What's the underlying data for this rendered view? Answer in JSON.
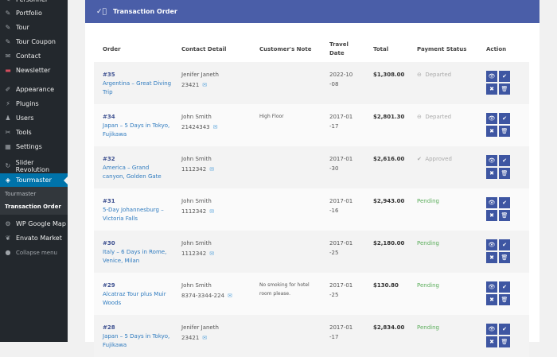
{
  "sidebar": {
    "items": [
      {
        "label": "Personnel",
        "icon": "pin-icon",
        "top": -9
      },
      {
        "label": "Portfolio",
        "icon": "pin-icon",
        "top": 8
      },
      {
        "label": "Tour",
        "icon": "pin-icon",
        "top": 26
      },
      {
        "label": "Tour Coupon",
        "icon": "pin-icon",
        "top": 44
      },
      {
        "label": "Contact",
        "icon": "mail-icon",
        "top": 62
      },
      {
        "label": "Newsletter",
        "icon": "newsletter-icon",
        "top": 80
      },
      {
        "label": "Appearance",
        "icon": "brush-icon",
        "top": 104
      },
      {
        "label": "Plugins",
        "icon": "plugin-icon",
        "top": 122
      },
      {
        "label": "Users",
        "icon": "user-icon",
        "top": 140
      },
      {
        "label": "Tools",
        "icon": "wrench-icon",
        "top": 158
      },
      {
        "label": "Settings",
        "icon": "settings-icon",
        "top": 176
      },
      {
        "label": "Slider Revolution",
        "icon": "refresh-icon",
        "top": 200
      },
      {
        "label": "Tourmaster",
        "icon": "tourmaster-icon",
        "top": 218,
        "active": true
      },
      {
        "label": "WP Google Map",
        "icon": "gear-icon",
        "top": 273
      },
      {
        "label": "Envato Market",
        "icon": "leaf-icon",
        "top": 291
      },
      {
        "label": "Collapse menu",
        "icon": "collapse-icon",
        "top": 309
      }
    ],
    "submenu": [
      "Tourmaster",
      "Transaction Order"
    ]
  },
  "header": {
    "title": "Transaction Order",
    "icon": "check-circle-icon",
    "color": "#4a5ea8"
  },
  "table": {
    "headers": [
      "Order",
      "Contact Detail",
      "Customer's Note",
      "Travel Date",
      "Total",
      "Payment Status",
      "Action"
    ],
    "rows": [
      {
        "id": "#35",
        "tour": "Argentina – Great Diving Trip",
        "name": "Jenifer Janeth",
        "phone": "23421",
        "note": "",
        "date": "2022-10-08",
        "total": "$1,308.00",
        "status": "Departed",
        "status_type": "dep"
      },
      {
        "id": "#34",
        "tour": "Japan – 5 Days in Tokyo, Fujikawa",
        "name": "John Smith",
        "phone": "21424343",
        "note": "High Floor",
        "date": "2017-01-17",
        "total": "$2,801.30",
        "status": "Departed",
        "status_type": "dep"
      },
      {
        "id": "#32",
        "tour": "America – Grand canyon, Golden Gate",
        "name": "John Smith",
        "phone": "1112342",
        "note": "",
        "date": "2017-01-30",
        "total": "$2,616.00",
        "status": "Approved",
        "status_type": "app"
      },
      {
        "id": "#31",
        "tour": "5-Day Johannesburg – Victoria Falls",
        "name": "John Smith",
        "phone": "1112342",
        "note": "",
        "date": "2017-01-16",
        "total": "$2,943.00",
        "status": "Pending",
        "status_type": "pen"
      },
      {
        "id": "#30",
        "tour": "Italy – 6 Days in Rome, Venice, Milan",
        "name": "John Smith",
        "phone": "1112342",
        "note": "",
        "date": "2017-01-25",
        "total": "$2,180.00",
        "status": "Pending",
        "status_type": "pen"
      },
      {
        "id": "#29",
        "tour": "Alcatraz Tour plus Muir Woods",
        "name": "John Smith",
        "phone": "8374-3344-224",
        "note": "No smoking for hotel room please.",
        "date": "2017-01-25",
        "total": "$130.80",
        "status": "Pending",
        "status_type": "pen"
      },
      {
        "id": "#28",
        "tour": "Japan – 5 Days in Tokyo, Fujikawa",
        "name": "Jenifer Janeth",
        "phone": "23421",
        "note": "",
        "date": "2017-01-17",
        "total": "$2,834.00",
        "status": "Pending",
        "status_type": "pen"
      }
    ]
  },
  "colors": {
    "accent": "#4a5ea8",
    "sidebar": "#23282d",
    "active": "#0073aa",
    "pending": "#5cae5c"
  }
}
